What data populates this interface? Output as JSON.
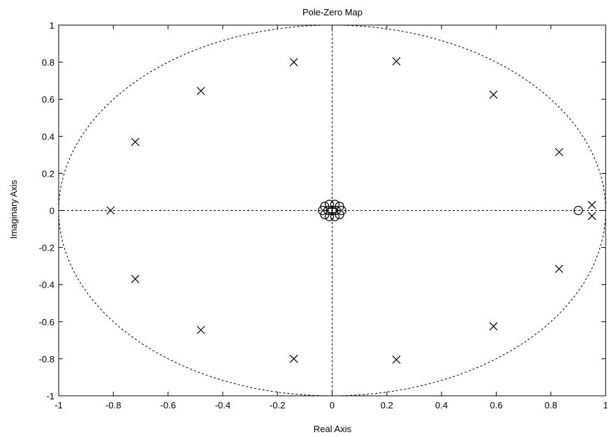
{
  "chart_data": {
    "type": "scatter",
    "title": "Pole-Zero Map",
    "xlabel": "Real Axis",
    "ylabel": "Imaginary Axis",
    "xlim": [
      -1,
      1
    ],
    "ylim": [
      -1,
      1
    ],
    "xticks": [
      "-1",
      "-0.8",
      "-0.6",
      "-0.4",
      "-0.2",
      "0",
      "0.2",
      "0.4",
      "0.6",
      "0.8",
      "1"
    ],
    "yticks": [
      "1",
      "0.8",
      "0.6",
      "0.4",
      "0.2",
      "0",
      "-0.2",
      "-0.4",
      "-0.6",
      "-0.8",
      "-1"
    ],
    "xtick_values": [
      -1,
      -0.8,
      -0.6,
      -0.4,
      -0.2,
      0,
      0.2,
      0.4,
      0.6,
      0.8,
      1
    ],
    "ytick_values": [
      1,
      0.8,
      0.6,
      0.4,
      0.2,
      0,
      -0.2,
      -0.4,
      -0.6,
      -0.8,
      -1
    ],
    "grid": false,
    "unit_circle": true,
    "axes_crosshair": true,
    "poles": [
      {
        "x": -0.81,
        "y": 0
      },
      {
        "x": -0.72,
        "y": 0.37
      },
      {
        "x": -0.72,
        "y": -0.37
      },
      {
        "x": -0.48,
        "y": 0.645
      },
      {
        "x": -0.48,
        "y": -0.645
      },
      {
        "x": -0.14,
        "y": 0.8
      },
      {
        "x": -0.14,
        "y": -0.8
      },
      {
        "x": 0.235,
        "y": 0.805
      },
      {
        "x": 0.235,
        "y": -0.805
      },
      {
        "x": 0.59,
        "y": 0.625
      },
      {
        "x": 0.59,
        "y": -0.625
      },
      {
        "x": 0.83,
        "y": 0.315
      },
      {
        "x": 0.83,
        "y": -0.315
      },
      {
        "x": 0.95,
        "y": 0.03
      },
      {
        "x": 0.95,
        "y": -0.03
      }
    ],
    "zeros": [
      {
        "x": 0.9,
        "y": 0
      },
      {
        "x": 0,
        "y": 0
      },
      {
        "x": 0.035,
        "y": 0
      },
      {
        "x": -0.035,
        "y": 0
      },
      {
        "x": 0.027,
        "y": 0.022
      },
      {
        "x": 0.027,
        "y": -0.022
      },
      {
        "x": -0.027,
        "y": 0.022
      },
      {
        "x": -0.027,
        "y": -0.022
      },
      {
        "x": 0.01,
        "y": 0.033
      },
      {
        "x": 0.01,
        "y": -0.033
      },
      {
        "x": -0.01,
        "y": 0.033
      },
      {
        "x": -0.01,
        "y": -0.033
      },
      {
        "x": 0.015,
        "y": 0
      },
      {
        "x": -0.015,
        "y": 0
      }
    ],
    "colors": {
      "marks": "#000000",
      "background": "#ffffff"
    }
  }
}
